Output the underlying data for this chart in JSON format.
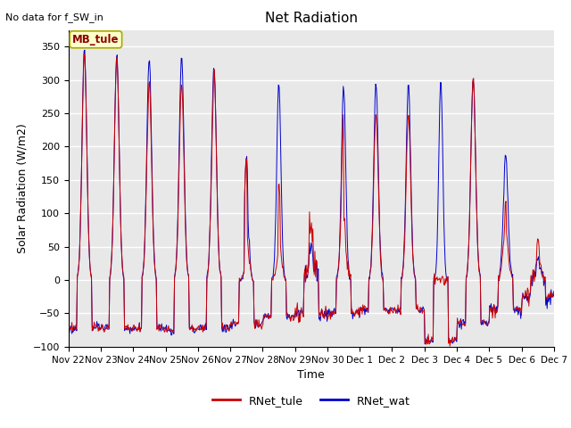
{
  "title": "Net Radiation",
  "xlabel": "Time",
  "ylabel": "Solar Radiation (W/m2)",
  "annotation_text": "No data for f_SW_in",
  "legend_label1": "RNet_tule",
  "legend_label2": "RNet_wat",
  "box_label": "MB_tule",
  "ylim": [
    -100,
    375
  ],
  "color1": "#cc0000",
  "color2": "#0000cc",
  "plot_bg": "#e8e8e8",
  "tick_labels": [
    "Nov 22",
    "Nov 23",
    "Nov 24",
    "Nov 25",
    "Nov 26",
    "Nov 27",
    "Nov 28",
    "Nov 29",
    "Nov 30",
    "Dec 1",
    "Dec 2",
    "Dec 3",
    "Dec 4",
    "Dec 5",
    "Dec 6",
    "Dec 7"
  ]
}
